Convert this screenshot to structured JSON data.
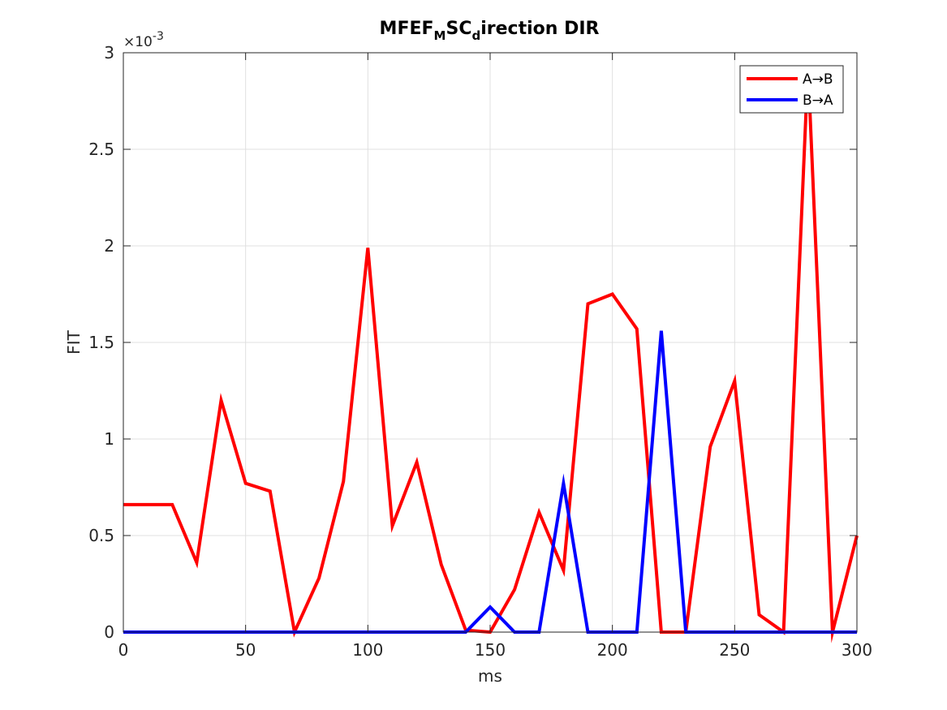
{
  "chart_data": {
    "type": "line",
    "title": {
      "main": "MFEF",
      "sub1": "M",
      "mid": "SC",
      "sub2": "d",
      "tail": "irection DIR"
    },
    "xlabel": "ms",
    "ylabel": "FIT",
    "xlim": [
      0,
      300
    ],
    "ylim": [
      0,
      3
    ],
    "y_multiplier": "×10",
    "y_multiplier_exp": "-3",
    "x_ticks": [
      0,
      50,
      100,
      150,
      200,
      250,
      300
    ],
    "x_tick_labels": [
      "0",
      "50",
      "100",
      "150",
      "200",
      "250",
      "300"
    ],
    "y_ticks": [
      0,
      0.5,
      1,
      1.5,
      2,
      2.5,
      3
    ],
    "y_tick_labels": [
      "0",
      "0.5",
      "1",
      "1.5",
      "2",
      "2.5",
      "3"
    ],
    "grid": true,
    "legend_position": "top-right",
    "x": [
      0,
      10,
      20,
      30,
      40,
      50,
      60,
      70,
      80,
      90,
      100,
      110,
      120,
      130,
      140,
      150,
      160,
      170,
      180,
      190,
      200,
      210,
      220,
      230,
      240,
      250,
      260,
      270,
      280,
      290,
      300
    ],
    "series": [
      {
        "name": "A→B",
        "color": "#ff0000",
        "values": [
          0.66,
          0.66,
          0.66,
          0.36,
          1.2,
          0.77,
          0.73,
          0.0,
          0.28,
          0.78,
          1.99,
          0.55,
          0.88,
          0.35,
          0.01,
          0.0,
          0.22,
          0.62,
          0.32,
          1.7,
          1.75,
          1.57,
          0.0,
          0.0,
          0.96,
          1.3,
          0.09,
          0.0,
          2.93,
          0.0,
          0.5
        ]
      },
      {
        "name": "B→A",
        "color": "#0000ff",
        "values": [
          0,
          0,
          0,
          0,
          0,
          0,
          0,
          0,
          0,
          0,
          0,
          0,
          0,
          0,
          0,
          0.13,
          0,
          0,
          0.77,
          0,
          0,
          0,
          1.56,
          0,
          0,
          0,
          0,
          0,
          0,
          0,
          0
        ]
      }
    ]
  }
}
